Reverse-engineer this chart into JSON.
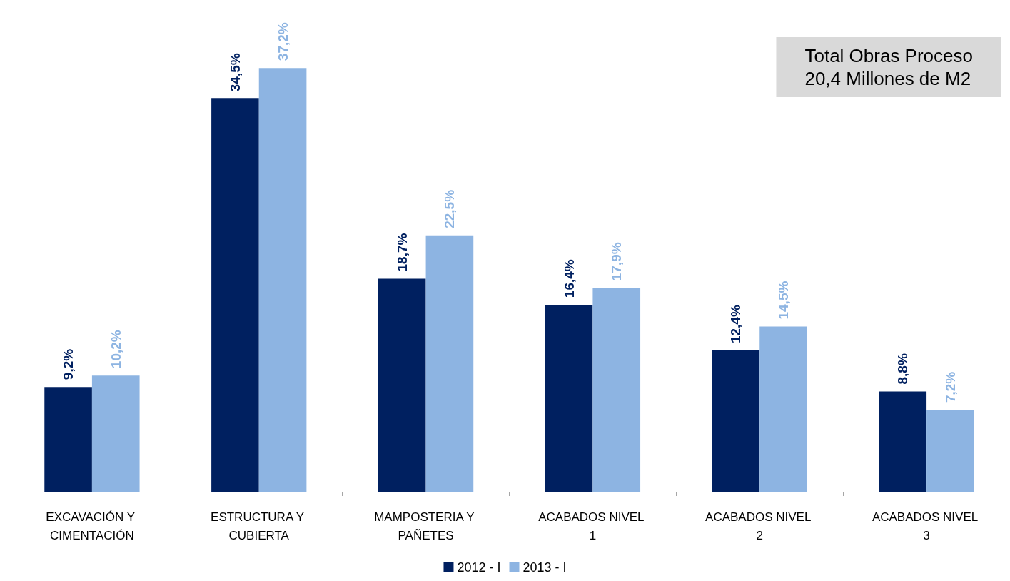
{
  "chart_data": {
    "type": "bar",
    "categories": [
      "EXCAVACIÓN Y CIMENTACIÓN",
      "ESTRUCTURA Y CUBIERTA",
      "MAMPOSTERIA Y PAÑETES",
      "ACABADOS NIVEL 1",
      "ACABADOS NIVEL 2",
      "ACABADOS NIVEL 3"
    ],
    "series": [
      {
        "name": "2012 - I",
        "color": "#002060",
        "values": [
          9.2,
          34.5,
          18.7,
          16.4,
          12.4,
          8.8
        ],
        "value_labels": [
          "9,2%",
          "34,5%",
          "18,7%",
          "16,4%",
          "12,4%",
          "8,8%"
        ]
      },
      {
        "name": "2013 - I",
        "color": "#8db4e2",
        "values": [
          10.2,
          37.2,
          22.5,
          17.9,
          14.5,
          7.2
        ],
        "value_labels": [
          "10,2%",
          "37,2%",
          "22,5%",
          "17,9%",
          "14,5%",
          "7,2%"
        ]
      }
    ],
    "annotations": [
      "Total Obras Proceso",
      "20,4 Millones de M2"
    ],
    "legend": "bottom",
    "grid": false
  }
}
